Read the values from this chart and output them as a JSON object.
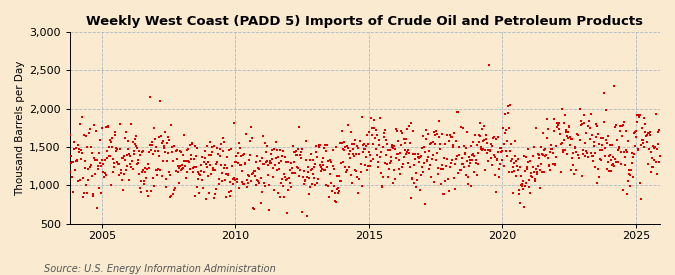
{
  "title": "Weekly West Coast (PADD 5) Imports of Crude Oil and Petroleum Products",
  "ylabel": "Thousand Barrels per Day",
  "source": "Source: U.S. Energy Information Administration",
  "ylim": [
    500,
    3000
  ],
  "yticks": [
    500,
    1000,
    1500,
    2000,
    2500,
    3000
  ],
  "x_start_year": 2003.8,
  "x_end_year": 2025.9,
  "xticks": [
    2005,
    2010,
    2015,
    2020,
    2025
  ],
  "dot_color": "#dd0000",
  "background_color": "#faebd0",
  "grid_color": "#aab8c2",
  "seed": 7,
  "n_points": 1140,
  "marker_size": 3.5,
  "title_fontsize": 9.5,
  "tick_fontsize": 8,
  "ylabel_fontsize": 7.5,
  "source_fontsize": 7
}
